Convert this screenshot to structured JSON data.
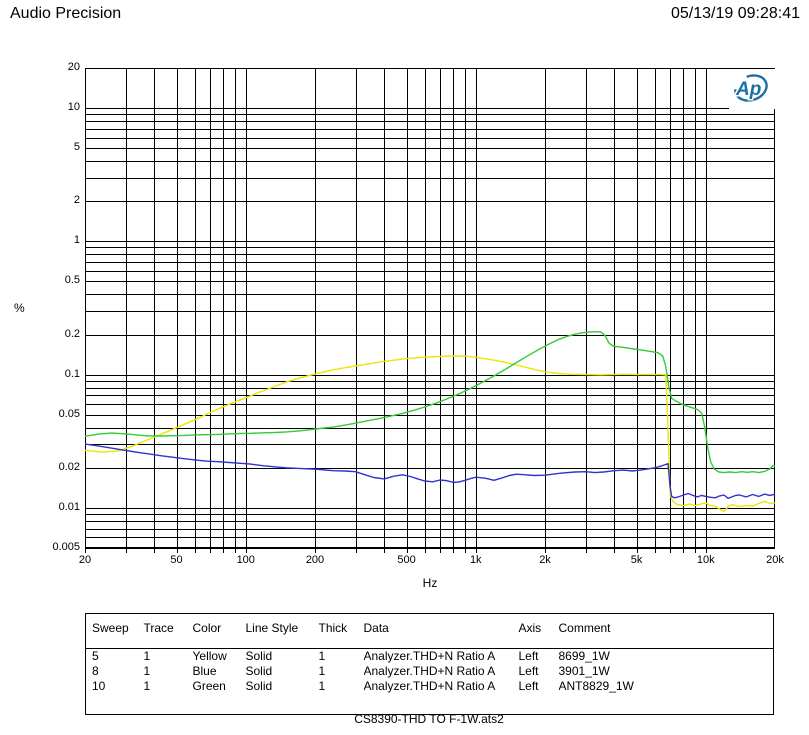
{
  "header": {
    "app_title": "Audio Precision",
    "datetime": "05/13/19 09:28:41"
  },
  "logo": {
    "text": "Ap",
    "color": "#1c6ea6"
  },
  "caption": "CS8390-THD TO F-1W.ats2",
  "legend_table": {
    "columns": [
      "Sweep",
      "Trace",
      "Color",
      "Line Style",
      "Thick",
      "Data",
      "Axis",
      "Comment"
    ],
    "rows": [
      {
        "sweep": "5",
        "trace": "1",
        "color": "Yellow",
        "line_style": "Solid",
        "thick": "1",
        "data": "Analyzer.THD+N Ratio A",
        "axis": "Left",
        "comment": "8699_1W"
      },
      {
        "sweep": "8",
        "trace": "1",
        "color": "Blue",
        "line_style": "Solid",
        "thick": "1",
        "data": "Analyzer.THD+N Ratio A",
        "axis": "Left",
        "comment": "3901_1W"
      },
      {
        "sweep": "10",
        "trace": "1",
        "color": "Green",
        "line_style": "Solid",
        "thick": "1",
        "data": "Analyzer.THD+N Ratio A",
        "axis": "Left",
        "comment": "ANT8829_1W"
      }
    ]
  },
  "chart_data": {
    "type": "line",
    "title": "",
    "xlabel": "Hz",
    "ylabel": "%",
    "x_scale": "log",
    "y_scale": "log",
    "xlim": [
      20,
      20000
    ],
    "ylim": [
      0.005,
      20
    ],
    "grid": true,
    "minor_log_grid": true,
    "grid_color": "#000000",
    "legend_position": "table-below",
    "x_ticks": [
      {
        "v": 20,
        "label": "20"
      },
      {
        "v": 50,
        "label": "50"
      },
      {
        "v": 100,
        "label": "100"
      },
      {
        "v": 200,
        "label": "200"
      },
      {
        "v": 500,
        "label": "500"
      },
      {
        "v": 1000,
        "label": "1k"
      },
      {
        "v": 2000,
        "label": "2k"
      },
      {
        "v": 5000,
        "label": "5k"
      },
      {
        "v": 10000,
        "label": "10k"
      },
      {
        "v": 20000,
        "label": "20k"
      }
    ],
    "y_ticks": [
      {
        "v": 20,
        "label": "20"
      },
      {
        "v": 10,
        "label": "10"
      },
      {
        "v": 5,
        "label": "5"
      },
      {
        "v": 2,
        "label": "2"
      },
      {
        "v": 1,
        "label": "1"
      },
      {
        "v": 0.5,
        "label": "0.5"
      },
      {
        "v": 0.2,
        "label": "0.2"
      },
      {
        "v": 0.1,
        "label": "0.1"
      },
      {
        "v": 0.05,
        "label": "0.05"
      },
      {
        "v": 0.02,
        "label": "0.02"
      },
      {
        "v": 0.01,
        "label": "0.01"
      },
      {
        "v": 0.005,
        "label": "0.005"
      }
    ],
    "series": [
      {
        "name": "8699_1W",
        "color_name": "Yellow",
        "color": "#f0e400",
        "line_style": "solid",
        "thick": 1,
        "points": [
          [
            20,
            0.027
          ],
          [
            24,
            0.0262
          ],
          [
            28,
            0.0268
          ],
          [
            32,
            0.029
          ],
          [
            36,
            0.0315
          ],
          [
            40,
            0.034
          ],
          [
            45,
            0.037
          ],
          [
            50,
            0.04
          ],
          [
            56,
            0.0435
          ],
          [
            63,
            0.0475
          ],
          [
            70,
            0.052
          ],
          [
            80,
            0.0575
          ],
          [
            90,
            0.0625
          ],
          [
            100,
            0.067
          ],
          [
            115,
            0.074
          ],
          [
            130,
            0.08
          ],
          [
            150,
            0.088
          ],
          [
            170,
            0.094
          ],
          [
            200,
            0.101
          ],
          [
            230,
            0.107
          ],
          [
            260,
            0.1115
          ],
          [
            300,
            0.116
          ],
          [
            350,
            0.1215
          ],
          [
            400,
            0.126
          ],
          [
            450,
            0.129
          ],
          [
            500,
            0.132
          ],
          [
            560,
            0.134
          ],
          [
            630,
            0.1355
          ],
          [
            700,
            0.137
          ],
          [
            800,
            0.138
          ],
          [
            900,
            0.1375
          ],
          [
            1000,
            0.135
          ],
          [
            1150,
            0.13
          ],
          [
            1300,
            0.125
          ],
          [
            1500,
            0.118
          ],
          [
            1700,
            0.112
          ],
          [
            2000,
            0.105
          ],
          [
            2300,
            0.102
          ],
          [
            2600,
            0.1005
          ],
          [
            3000,
            0.1
          ],
          [
            3500,
            0.0995
          ],
          [
            4000,
            0.1
          ],
          [
            4500,
            0.1005
          ],
          [
            5000,
            0.1
          ],
          [
            5500,
            0.1
          ],
          [
            6000,
            0.1
          ],
          [
            6400,
            0.1
          ],
          [
            6700,
            0.0995
          ],
          [
            6850,
            0.04
          ],
          [
            7000,
            0.0125
          ],
          [
            7200,
            0.0112
          ],
          [
            7500,
            0.0106
          ],
          [
            8000,
            0.0104
          ],
          [
            8500,
            0.0107
          ],
          [
            9000,
            0.0104
          ],
          [
            9500,
            0.0107
          ],
          [
            10000,
            0.0109
          ],
          [
            10500,
            0.0104
          ],
          [
            11000,
            0.0103
          ],
          [
            11500,
            0.0098
          ],
          [
            12000,
            0.0094
          ],
          [
            12500,
            0.0102
          ],
          [
            13000,
            0.0106
          ],
          [
            14000,
            0.0102
          ],
          [
            15000,
            0.0104
          ],
          [
            16000,
            0.0103
          ],
          [
            17000,
            0.0108
          ],
          [
            18000,
            0.0112
          ],
          [
            19000,
            0.0108
          ],
          [
            20000,
            0.0109
          ]
        ]
      },
      {
        "name": "3901_1W",
        "color_name": "Blue",
        "color": "#3232cc",
        "line_style": "solid",
        "thick": 1,
        "points": [
          [
            20,
            0.0301
          ],
          [
            23,
            0.0291
          ],
          [
            26,
            0.0281
          ],
          [
            30,
            0.027
          ],
          [
            34,
            0.0261
          ],
          [
            38,
            0.0254
          ],
          [
            43,
            0.0246
          ],
          [
            48,
            0.024
          ],
          [
            54,
            0.0234
          ],
          [
            60,
            0.0229
          ],
          [
            68,
            0.0224
          ],
          [
            76,
            0.0222
          ],
          [
            85,
            0.0219
          ],
          [
            95,
            0.0216
          ],
          [
            105,
            0.0213
          ],
          [
            120,
            0.0207
          ],
          [
            135,
            0.0203
          ],
          [
            150,
            0.02
          ],
          [
            170,
            0.0198
          ],
          [
            190,
            0.0196
          ],
          [
            210,
            0.0194
          ],
          [
            240,
            0.019
          ],
          [
            270,
            0.0189
          ],
          [
            300,
            0.0187
          ],
          [
            330,
            0.0177
          ],
          [
            360,
            0.0169
          ],
          [
            400,
            0.0165
          ],
          [
            440,
            0.0173
          ],
          [
            480,
            0.0177
          ],
          [
            520,
            0.0172
          ],
          [
            560,
            0.0165
          ],
          [
            600,
            0.0159
          ],
          [
            650,
            0.0157
          ],
          [
            700,
            0.0162
          ],
          [
            750,
            0.016
          ],
          [
            800,
            0.0155
          ],
          [
            850,
            0.0157
          ],
          [
            900,
            0.0161
          ],
          [
            950,
            0.0166
          ],
          [
            1000,
            0.017
          ],
          [
            1100,
            0.0167
          ],
          [
            1200,
            0.0161
          ],
          [
            1300,
            0.0168
          ],
          [
            1400,
            0.0175
          ],
          [
            1500,
            0.0179
          ],
          [
            1650,
            0.0177
          ],
          [
            1800,
            0.0175
          ],
          [
            2000,
            0.0176
          ],
          [
            2200,
            0.018
          ],
          [
            2400,
            0.0183
          ],
          [
            2700,
            0.0186
          ],
          [
            3000,
            0.0187
          ],
          [
            3300,
            0.0184
          ],
          [
            3600,
            0.0186
          ],
          [
            4000,
            0.019
          ],
          [
            4400,
            0.0192
          ],
          [
            4800,
            0.0189
          ],
          [
            5200,
            0.0192
          ],
          [
            5600,
            0.0196
          ],
          [
            6000,
            0.02
          ],
          [
            6400,
            0.0206
          ],
          [
            6700,
            0.0212
          ],
          [
            6850,
            0.0215
          ],
          [
            7000,
            0.0145
          ],
          [
            7100,
            0.0122
          ],
          [
            7300,
            0.0119
          ],
          [
            7600,
            0.0121
          ],
          [
            8000,
            0.0125
          ],
          [
            8400,
            0.0128
          ],
          [
            8800,
            0.0124
          ],
          [
            9200,
            0.0121
          ],
          [
            9600,
            0.0124
          ],
          [
            10000,
            0.0122
          ],
          [
            10500,
            0.012
          ],
          [
            11000,
            0.0119
          ],
          [
            11500,
            0.0123
          ],
          [
            12000,
            0.0125
          ],
          [
            12500,
            0.0118
          ],
          [
            13000,
            0.0121
          ],
          [
            13500,
            0.0124
          ],
          [
            14000,
            0.0125
          ],
          [
            15000,
            0.0121
          ],
          [
            16000,
            0.0126
          ],
          [
            17000,
            0.0122
          ],
          [
            18000,
            0.0127
          ],
          [
            19000,
            0.0124
          ],
          [
            20000,
            0.0127
          ]
        ]
      },
      {
        "name": "ANT8829_1W",
        "color_name": "Green",
        "color": "#33cc33",
        "line_style": "solid",
        "thick": 1,
        "points": [
          [
            20,
            0.0345
          ],
          [
            23,
            0.0358
          ],
          [
            26,
            0.0364
          ],
          [
            30,
            0.036
          ],
          [
            34,
            0.0352
          ],
          [
            38,
            0.0347
          ],
          [
            43,
            0.0346
          ],
          [
            48,
            0.0348
          ],
          [
            54,
            0.035
          ],
          [
            60,
            0.0353
          ],
          [
            68,
            0.0354
          ],
          [
            76,
            0.0356
          ],
          [
            85,
            0.0359
          ],
          [
            95,
            0.0362
          ],
          [
            105,
            0.0363
          ],
          [
            120,
            0.0366
          ],
          [
            135,
            0.0368
          ],
          [
            150,
            0.0372
          ],
          [
            170,
            0.0378
          ],
          [
            190,
            0.0386
          ],
          [
            210,
            0.0394
          ],
          [
            240,
            0.0404
          ],
          [
            270,
            0.0418
          ],
          [
            300,
            0.0432
          ],
          [
            340,
            0.0451
          ],
          [
            380,
            0.0468
          ],
          [
            430,
            0.049
          ],
          [
            480,
            0.0512
          ],
          [
            540,
            0.0541
          ],
          [
            600,
            0.0572
          ],
          [
            670,
            0.061
          ],
          [
            750,
            0.0658
          ],
          [
            840,
            0.0714
          ],
          [
            940,
            0.0782
          ],
          [
            1050,
            0.0862
          ],
          [
            1200,
            0.0978
          ],
          [
            1350,
            0.11
          ],
          [
            1500,
            0.123
          ],
          [
            1700,
            0.14
          ],
          [
            1900,
            0.156
          ],
          [
            2100,
            0.171
          ],
          [
            2300,
            0.184
          ],
          [
            2500,
            0.194
          ],
          [
            2700,
            0.201
          ],
          [
            2900,
            0.206
          ],
          [
            3100,
            0.209
          ],
          [
            3300,
            0.21
          ],
          [
            3500,
            0.209
          ],
          [
            3650,
            0.196
          ],
          [
            3800,
            0.172
          ],
          [
            3950,
            0.164
          ],
          [
            4100,
            0.162
          ],
          [
            4300,
            0.161
          ],
          [
            4600,
            0.158
          ],
          [
            5000,
            0.155
          ],
          [
            5400,
            0.152
          ],
          [
            5800,
            0.149
          ],
          [
            6200,
            0.146
          ],
          [
            6500,
            0.138
          ],
          [
            6700,
            0.115
          ],
          [
            6900,
            0.082
          ],
          [
            7100,
            0.0665
          ],
          [
            7400,
            0.0635
          ],
          [
            7800,
            0.0605
          ],
          [
            8200,
            0.0585
          ],
          [
            8700,
            0.0565
          ],
          [
            9200,
            0.0548
          ],
          [
            9600,
            0.0515
          ],
          [
            9900,
            0.04
          ],
          [
            10200,
            0.0285
          ],
          [
            10500,
            0.0222
          ],
          [
            10900,
            0.0195
          ],
          [
            11400,
            0.0186
          ],
          [
            12000,
            0.0184
          ],
          [
            12700,
            0.0186
          ],
          [
            13500,
            0.0184
          ],
          [
            14300,
            0.0187
          ],
          [
            15200,
            0.0185
          ],
          [
            16000,
            0.0187
          ],
          [
            17000,
            0.0184
          ],
          [
            18000,
            0.0188
          ],
          [
            19000,
            0.0196
          ],
          [
            19600,
            0.0208
          ],
          [
            20000,
            0.0206
          ]
        ]
      }
    ]
  }
}
